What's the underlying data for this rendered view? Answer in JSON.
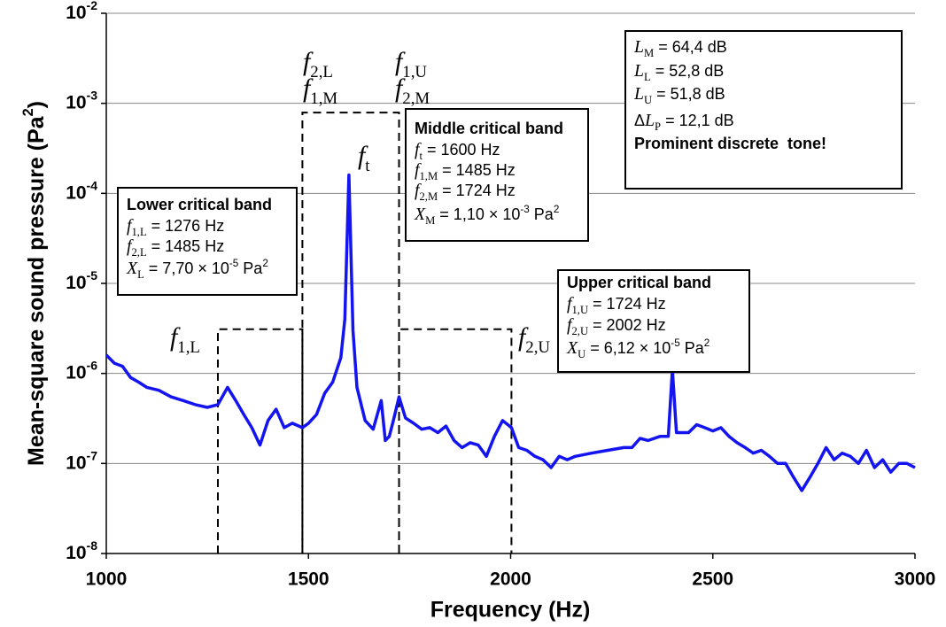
{
  "chart_data": {
    "type": "line",
    "xlabel": "Frequency (Hz)",
    "ylabel": [
      {
        "text": "Mean-square sound pressure (Pa"
      },
      {
        "text": "2",
        "style": "sup"
      },
      {
        "text": ")"
      }
    ],
    "xlim": [
      1000,
      3000
    ],
    "xticks": [
      1000,
      1500,
      2000,
      2500,
      3000
    ],
    "ylim": [
      1e-08,
      0.01
    ],
    "log_y": true,
    "grid": true,
    "yticks": [
      {
        "value": 1e-08,
        "label": "10-8"
      },
      {
        "value": 1e-07,
        "label": "10-7"
      },
      {
        "value": 1e-06,
        "label": "10-6"
      },
      {
        "value": 1e-05,
        "label": "10-5"
      },
      {
        "value": 0.0001,
        "label": "10-4"
      },
      {
        "value": 0.001,
        "label": "10-3"
      },
      {
        "value": 0.01,
        "label": "10-2"
      }
    ],
    "x": [
      1000,
      1020,
      1040,
      1060,
      1080,
      1100,
      1130,
      1160,
      1190,
      1220,
      1250,
      1276,
      1300,
      1320,
      1340,
      1360,
      1380,
      1400,
      1420,
      1440,
      1460,
      1485,
      1500,
      1520,
      1540,
      1560,
      1580,
      1590,
      1600,
      1610,
      1620,
      1640,
      1660,
      1680,
      1690,
      1700,
      1710,
      1724,
      1740,
      1760,
      1780,
      1800,
      1820,
      1840,
      1860,
      1880,
      1900,
      1920,
      1940,
      1960,
      1980,
      2002,
      2020,
      2040,
      2060,
      2080,
      2100,
      2120,
      2140,
      2160,
      2200,
      2240,
      2280,
      2300,
      2320,
      2340,
      2370,
      2390,
      2400,
      2410,
      2440,
      2460,
      2480,
      2500,
      2520,
      2540,
      2560,
      2580,
      2600,
      2620,
      2640,
      2660,
      2680,
      2700,
      2720,
      2740,
      2760,
      2780,
      2800,
      2820,
      2840,
      2860,
      2880,
      2900,
      2920,
      2940,
      2960,
      2980,
      3000
    ],
    "series": [
      {
        "color": "#1414f0",
        "values": [
          1.6e-06,
          1.3e-06,
          1.2e-06,
          9e-07,
          8e-07,
          7e-07,
          6.5e-07,
          5.5e-07,
          5e-07,
          4.5e-07,
          4.2e-07,
          4.5e-07,
          7e-07,
          5e-07,
          3.5e-07,
          2.5e-07,
          1.6e-07,
          3e-07,
          4e-07,
          2.5e-07,
          2.8e-07,
          2.5e-07,
          2.8e-07,
          3.5e-07,
          6e-07,
          8e-07,
          1.5e-06,
          4e-06,
          0.00016,
          3e-06,
          7e-07,
          3e-07,
          2.4e-07,
          5e-07,
          1.8e-07,
          2e-07,
          3e-07,
          5.5e-07,
          3.2e-07,
          2.8e-07,
          2.4e-07,
          2.5e-07,
          2.2e-07,
          2.6e-07,
          1.8e-07,
          1.5e-07,
          1.7e-07,
          1.6e-07,
          1.2e-07,
          2e-07,
          3e-07,
          2.5e-07,
          1.5e-07,
          1.4e-07,
          1.2e-07,
          1.1e-07,
          9e-08,
          1.2e-07,
          1.1e-07,
          1.2e-07,
          1.3e-07,
          1.4e-07,
          1.5e-07,
          1.5e-07,
          1.9e-07,
          1.8e-07,
          2e-07,
          2e-07,
          1.1e-06,
          2.2e-07,
          2.2e-07,
          2.7e-07,
          2.5e-07,
          2.3e-07,
          2.5e-07,
          2e-07,
          1.7e-07,
          1.5e-07,
          1.3e-07,
          1.4e-07,
          1.2e-07,
          1e-07,
          1e-07,
          7e-08,
          5e-08,
          7e-08,
          1e-07,
          1.5e-07,
          1.1e-07,
          1.3e-07,
          1.2e-07,
          1e-07,
          1.4e-07,
          9e-08,
          1.1e-07,
          8e-08,
          1e-07,
          1e-07,
          9e-08
        ]
      }
    ],
    "bands": [
      {
        "f1": 1276,
        "f2": 1485,
        "level": 3.1e-06
      },
      {
        "f1": 1485,
        "f2": 1724,
        "level": 0.00079
      },
      {
        "f1": 1724,
        "f2": 2002,
        "level": 3.1e-06
      }
    ],
    "annotations": [
      [
        {
          "text": "f",
          "style": "i"
        },
        {
          "text": "1,L",
          "style": "sub"
        }
      ],
      [
        {
          "text": "f",
          "style": "i"
        },
        {
          "text": "2,L",
          "style": "sub"
        }
      ],
      [
        {
          "text": "f",
          "style": "i"
        },
        {
          "text": "1,M",
          "style": "sub"
        }
      ],
      [
        {
          "text": "f",
          "style": "i"
        },
        {
          "text": "1,U",
          "style": "sub"
        }
      ],
      [
        {
          "text": "f",
          "style": "i"
        },
        {
          "text": "2,M",
          "style": "sub"
        }
      ],
      [
        {
          "text": "f",
          "style": "i"
        },
        {
          "text": "t",
          "style": "sub"
        }
      ],
      [
        {
          "text": "f",
          "style": "i"
        },
        {
          "text": "2,U",
          "style": "sub"
        }
      ]
    ],
    "boxes": [
      [
        [
          {
            "text": "Lower critical band",
            "style": "b"
          }
        ],
        [
          {
            "text": "f",
            "style": "i"
          },
          {
            "text": "1,L",
            "style": "sub"
          },
          {
            "text": " = 1276 Hz"
          }
        ],
        [
          {
            "text": "f",
            "style": "i"
          },
          {
            "text": "2,L",
            "style": "sub"
          },
          {
            "text": " = 1485 Hz"
          }
        ],
        [
          {
            "text": "X",
            "style": "i"
          },
          {
            "text": "L",
            "style": "sub"
          },
          {
            "text": " = 7,70 × 10"
          },
          {
            "text": "-5",
            "style": "sup"
          },
          {
            "text": " Pa"
          },
          {
            "text": "2",
            "style": "sup"
          }
        ]
      ],
      [
        [
          {
            "text": "Middle critical band",
            "style": "b"
          }
        ],
        [
          {
            "text": "f",
            "style": "i"
          },
          {
            "text": "t",
            "style": "sub"
          },
          {
            "text": " = 1600 Hz"
          }
        ],
        [
          {
            "text": "f",
            "style": "i"
          },
          {
            "text": "1,M",
            "style": "sub"
          },
          {
            "text": " = 1485 Hz"
          }
        ],
        [
          {
            "text": "f",
            "style": "i"
          },
          {
            "text": "2,M",
            "style": "sub"
          },
          {
            "text": " = 1724 Hz"
          }
        ],
        [
          {
            "text": "X",
            "style": "i"
          },
          {
            "text": "M",
            "style": "sub"
          },
          {
            "text": " = 1,10 × 10"
          },
          {
            "text": "-3",
            "style": "sup"
          },
          {
            "text": " Pa"
          },
          {
            "text": "2",
            "style": "sup"
          }
        ]
      ],
      [
        [
          {
            "text": "Upper critical band",
            "style": "b"
          }
        ],
        [
          {
            "text": "f",
            "style": "i"
          },
          {
            "text": "1,U",
            "style": "sub"
          },
          {
            "text": " = 1724 Hz"
          }
        ],
        [
          {
            "text": "f",
            "style": "i"
          },
          {
            "text": "2,U",
            "style": "sub"
          },
          {
            "text": " = 2002 Hz"
          }
        ],
        [
          {
            "text": "X",
            "style": "i"
          },
          {
            "text": "U",
            "style": "sub"
          },
          {
            "text": " = 6,12 × 10"
          },
          {
            "text": "-5",
            "style": "sup"
          },
          {
            "text": " Pa"
          },
          {
            "text": "2",
            "style": "sup"
          }
        ]
      ],
      [
        [
          {
            "text": "L",
            "style": "i"
          },
          {
            "text": "M",
            "style": "sub"
          },
          {
            "text": " = 64,4 dB"
          }
        ],
        [
          {
            "text": "L",
            "style": "i"
          },
          {
            "text": "L",
            "style": "sub"
          },
          {
            "text": " = 52,8 dB"
          }
        ],
        [
          {
            "text": "L",
            "style": "i"
          },
          {
            "text": "U",
            "style": "sub"
          },
          {
            "text": " = 51,8 dB"
          }
        ],
        [
          {
            "text": "Δ"
          },
          {
            "text": "L",
            "style": "i"
          },
          {
            "text": "P",
            "style": "sub"
          },
          {
            "text": " = 12,1 dB"
          }
        ],
        [
          {
            "text": "Prominent discrete  tone!",
            "style": "b"
          }
        ]
      ]
    ]
  }
}
